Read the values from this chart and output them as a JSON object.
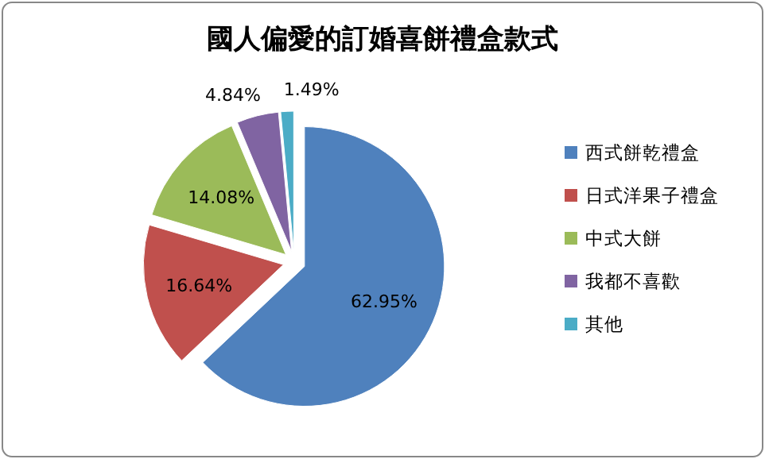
{
  "chart_data": {
    "type": "pie",
    "title": "國人偏愛的訂婚喜餅禮盒款式",
    "categories": [
      "西式餅乾禮盒",
      "日式洋果子禮盒",
      "中式大餅",
      "我都不喜歡",
      "其他"
    ],
    "values": [
      62.95,
      16.64,
      14.08,
      4.84,
      1.49
    ],
    "colors": [
      "#4f81bd",
      "#c0504d",
      "#9bbb59",
      "#8064a2",
      "#4bacc6"
    ],
    "value_labels": [
      "62.95%",
      "16.64%",
      "14.08%",
      "4.84%",
      "1.49%"
    ],
    "legend": "right"
  }
}
